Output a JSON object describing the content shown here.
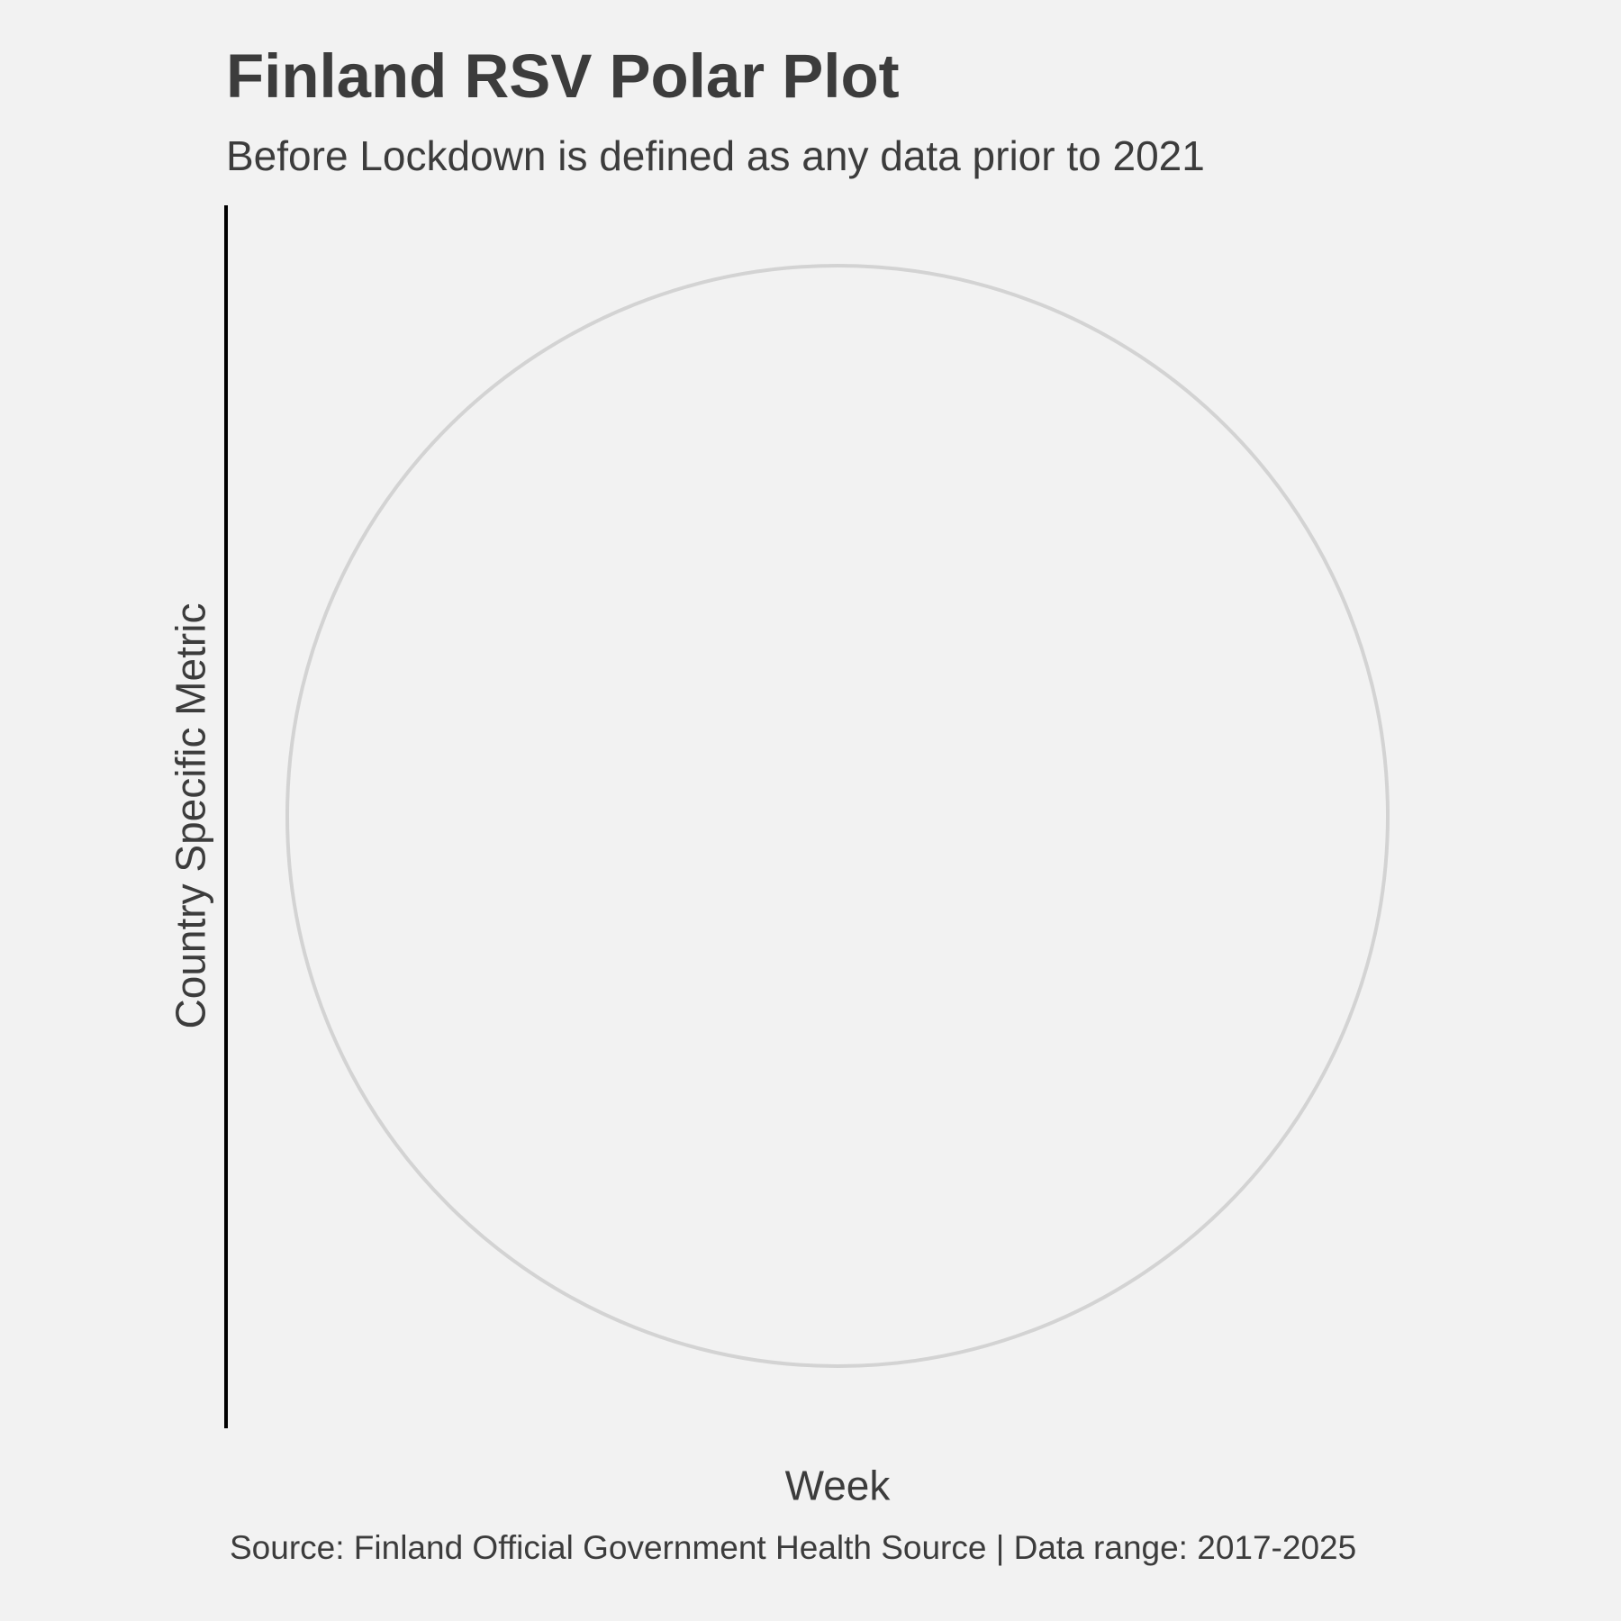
{
  "chart_data": {
    "type": "line",
    "coordinate_system": "polar",
    "title": "Finland RSV Polar Plot",
    "subtitle": "Before Lockdown is defined as any data prior to 2021",
    "xlabel": "Week",
    "ylabel": "Country Specific Metric",
    "caption": "Source: Finland Official Government Health Source | Data range: 2017-2025",
    "series": [],
    "grid": true,
    "legend": "none",
    "colors": {
      "background": "#f2f2f2",
      "text": "#3c3c3c",
      "grid": "#d3d3d3",
      "axis_line": "#000000"
    }
  }
}
